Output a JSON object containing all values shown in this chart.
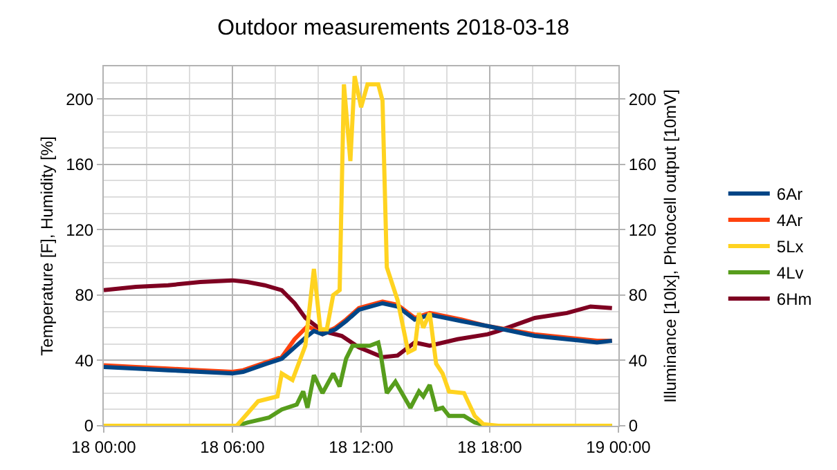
{
  "chart_data": {
    "type": "line",
    "title": "Outdoor measurements 2018-03-18",
    "ylabel": "Temperature [F], Humidity [%]",
    "y2label": "Illuminance [10lx], Photocell output [10mV]",
    "xlim": [
      "2018-03-18T00:00",
      "2018-03-19T00:00"
    ],
    "xticks": [
      {
        "value": "2018-03-18T00:00",
        "label": "18 00:00"
      },
      {
        "value": "2018-03-18T06:00",
        "label": "18 06:00"
      },
      {
        "value": "2018-03-18T12:00",
        "label": "18 12:00"
      },
      {
        "value": "2018-03-18T18:00",
        "label": "18 18:00"
      },
      {
        "value": "2018-03-19T00:00",
        "label": "19 00:00"
      }
    ],
    "ylim": [
      0,
      220
    ],
    "yticks": [
      0,
      40,
      80,
      120,
      160,
      200
    ],
    "y2lim": [
      0,
      220
    ],
    "y2ticks": [
      0,
      40,
      80,
      120,
      160,
      200
    ],
    "grid": true,
    "legend": "right",
    "marker": "none",
    "line_style": "solid",
    "series": [
      {
        "name": "6Ar",
        "color": "#004586",
        "x": [
          "2018-03-18T00:00",
          "2018-03-18T01:30",
          "2018-03-18T03:00",
          "2018-03-18T04:30",
          "2018-03-18T06:00",
          "2018-03-18T06:30",
          "2018-03-18T07:36",
          "2018-03-18T08:18",
          "2018-03-18T08:54",
          "2018-03-18T09:30",
          "2018-03-18T09:48",
          "2018-03-18T10:12",
          "2018-03-18T10:48",
          "2018-03-18T11:18",
          "2018-03-18T11:54",
          "2018-03-18T13:00",
          "2018-03-18T13:42",
          "2018-03-18T14:30",
          "2018-03-18T15:12",
          "2018-03-18T16:42",
          "2018-03-18T17:54",
          "2018-03-18T20:06",
          "2018-03-18T22:18",
          "2018-03-18T23:00",
          "2018-03-18T23:42"
        ],
        "values": [
          36,
          35,
          34,
          33,
          32,
          33,
          38,
          41,
          48,
          55,
          58,
          56,
          59,
          64,
          71,
          75,
          73,
          65,
          68,
          64,
          61,
          55,
          52,
          51,
          52
        ]
      },
      {
        "name": "4Ar",
        "color": "#ff420e",
        "x": [
          "2018-03-18T00:00",
          "2018-03-18T01:30",
          "2018-03-18T03:00",
          "2018-03-18T04:30",
          "2018-03-18T06:00",
          "2018-03-18T06:30",
          "2018-03-18T07:36",
          "2018-03-18T08:18",
          "2018-03-18T08:54",
          "2018-03-18T09:30",
          "2018-03-18T09:48",
          "2018-03-18T10:12",
          "2018-03-18T10:48",
          "2018-03-18T11:18",
          "2018-03-18T11:54",
          "2018-03-18T13:00",
          "2018-03-18T13:42",
          "2018-03-18T14:30",
          "2018-03-18T15:12",
          "2018-03-18T16:42",
          "2018-03-18T17:54",
          "2018-03-18T20:06",
          "2018-03-18T22:18",
          "2018-03-18T23:00",
          "2018-03-18T23:42"
        ],
        "values": [
          37,
          36,
          35,
          34,
          33,
          34,
          39,
          42,
          53,
          61,
          59,
          56,
          60,
          65,
          72,
          76,
          74,
          66,
          69,
          65,
          61,
          56,
          53,
          52,
          52
        ]
      },
      {
        "name": "5Lx",
        "color": "#ffd320",
        "axis": "y2",
        "x": [
          "2018-03-18T00:00",
          "2018-03-18T06:12",
          "2018-03-18T07:12",
          "2018-03-18T08:06",
          "2018-03-18T08:18",
          "2018-03-18T08:48",
          "2018-03-18T09:24",
          "2018-03-18T09:48",
          "2018-03-18T10:06",
          "2018-03-18T10:24",
          "2018-03-18T10:42",
          "2018-03-18T11:00",
          "2018-03-18T11:12",
          "2018-03-18T11:30",
          "2018-03-18T11:42",
          "2018-03-18T12:00",
          "2018-03-18T12:18",
          "2018-03-18T12:48",
          "2018-03-18T13:00",
          "2018-03-18T13:12",
          "2018-03-18T13:42",
          "2018-03-18T14:12",
          "2018-03-18T14:30",
          "2018-03-18T14:42",
          "2018-03-18T14:54",
          "2018-03-18T15:12",
          "2018-03-18T15:30",
          "2018-03-18T15:48",
          "2018-03-18T16:06",
          "2018-03-18T16:48",
          "2018-03-18T17:18",
          "2018-03-18T17:42",
          "2018-03-18T18:24",
          "2018-03-18T23:42"
        ],
        "values": [
          0,
          0,
          15,
          18,
          32,
          28,
          49,
          96,
          59,
          59,
          80,
          83,
          209,
          162,
          214,
          195,
          209,
          209,
          199,
          97,
          77,
          45,
          47,
          69,
          60,
          69,
          38,
          32,
          21,
          20,
          6,
          1,
          0,
          0
        ]
      },
      {
        "name": "4Lv",
        "color": "#579d1c",
        "axis": "y2",
        "x": [
          "2018-03-18T00:00",
          "2018-03-18T06:12",
          "2018-03-18T06:42",
          "2018-03-18T07:42",
          "2018-03-18T08:18",
          "2018-03-18T09:00",
          "2018-03-18T09:18",
          "2018-03-18T09:30",
          "2018-03-18T09:48",
          "2018-03-18T10:12",
          "2018-03-18T10:42",
          "2018-03-18T11:00",
          "2018-03-18T11:18",
          "2018-03-18T11:36",
          "2018-03-18T12:24",
          "2018-03-18T12:48",
          "2018-03-18T12:54",
          "2018-03-18T13:12",
          "2018-03-18T13:36",
          "2018-03-18T14:18",
          "2018-03-18T14:42",
          "2018-03-18T14:54",
          "2018-03-18T15:12",
          "2018-03-18T15:30",
          "2018-03-18T15:48",
          "2018-03-18T16:06",
          "2018-03-18T16:48",
          "2018-03-18T17:18",
          "2018-03-18T17:54",
          "2018-03-18T23:42"
        ],
        "values": [
          0,
          0,
          2,
          5,
          10,
          13,
          21,
          11,
          31,
          20,
          32,
          24,
          41,
          49,
          49,
          51,
          45,
          20,
          27,
          11,
          21,
          18,
          25,
          10,
          11,
          6,
          6,
          2,
          0,
          0
        ]
      },
      {
        "name": "6Hm",
        "color": "#7e0021",
        "x": [
          "2018-03-18T00:00",
          "2018-03-18T01:30",
          "2018-03-18T03:00",
          "2018-03-18T04:30",
          "2018-03-18T06:00",
          "2018-03-18T06:42",
          "2018-03-18T07:30",
          "2018-03-18T08:18",
          "2018-03-18T08:54",
          "2018-03-18T09:24",
          "2018-03-18T10:12",
          "2018-03-18T11:06",
          "2018-03-18T11:54",
          "2018-03-18T13:00",
          "2018-03-18T13:42",
          "2018-03-18T14:30",
          "2018-03-18T15:12",
          "2018-03-18T16:30",
          "2018-03-18T17:54",
          "2018-03-18T18:24",
          "2018-03-18T20:06",
          "2018-03-18T21:36",
          "2018-03-18T22:42",
          "2018-03-18T23:42"
        ],
        "values": [
          83,
          85,
          86,
          88,
          89,
          88,
          86,
          83,
          75,
          66,
          58,
          55,
          48,
          42,
          43,
          51,
          49,
          53,
          56,
          58,
          66,
          69,
          73,
          72
        ]
      }
    ]
  }
}
